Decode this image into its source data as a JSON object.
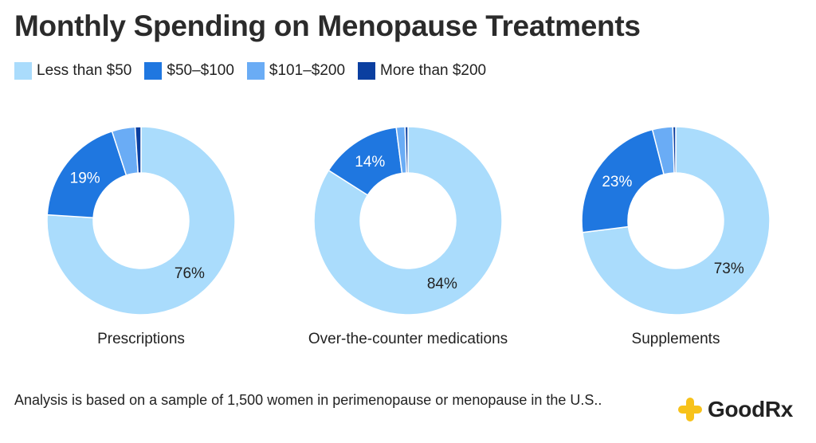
{
  "title": "Monthly Spending on Menopause Treatments",
  "colors": {
    "less_than_50": "#aadcfc",
    "50_100": "#1f77e0",
    "101_200": "#6aacf5",
    "more_than_200": "#0b3fa0",
    "brand_yellow": "#f7c21a"
  },
  "chart_data": {
    "type": "pie",
    "variant": "donut",
    "legend": {
      "placement": "top-left",
      "entries": [
        "Less than $50",
        "$50–$100",
        "$101–$200",
        "More than $200"
      ]
    },
    "charts": [
      {
        "label": "Prescriptions",
        "values": [
          76,
          19,
          4,
          1
        ],
        "data_labels": [
          "76%",
          "19%",
          "",
          ""
        ]
      },
      {
        "label": "Over-the-counter medications",
        "values": [
          84,
          14,
          1.5,
          0.5
        ],
        "data_labels": [
          "84%",
          "14%",
          "",
          ""
        ]
      },
      {
        "label": "Supplements",
        "values": [
          73,
          23,
          3.5,
          0.5
        ],
        "data_labels": [
          "73%",
          "23%",
          "",
          ""
        ]
      }
    ]
  },
  "footnote": "Analysis is based on a sample of 1,500 women in perimenopause or menopause in the U.S..",
  "brand": {
    "name": "GoodRx",
    "logo_icon": "plus-logo-icon"
  }
}
